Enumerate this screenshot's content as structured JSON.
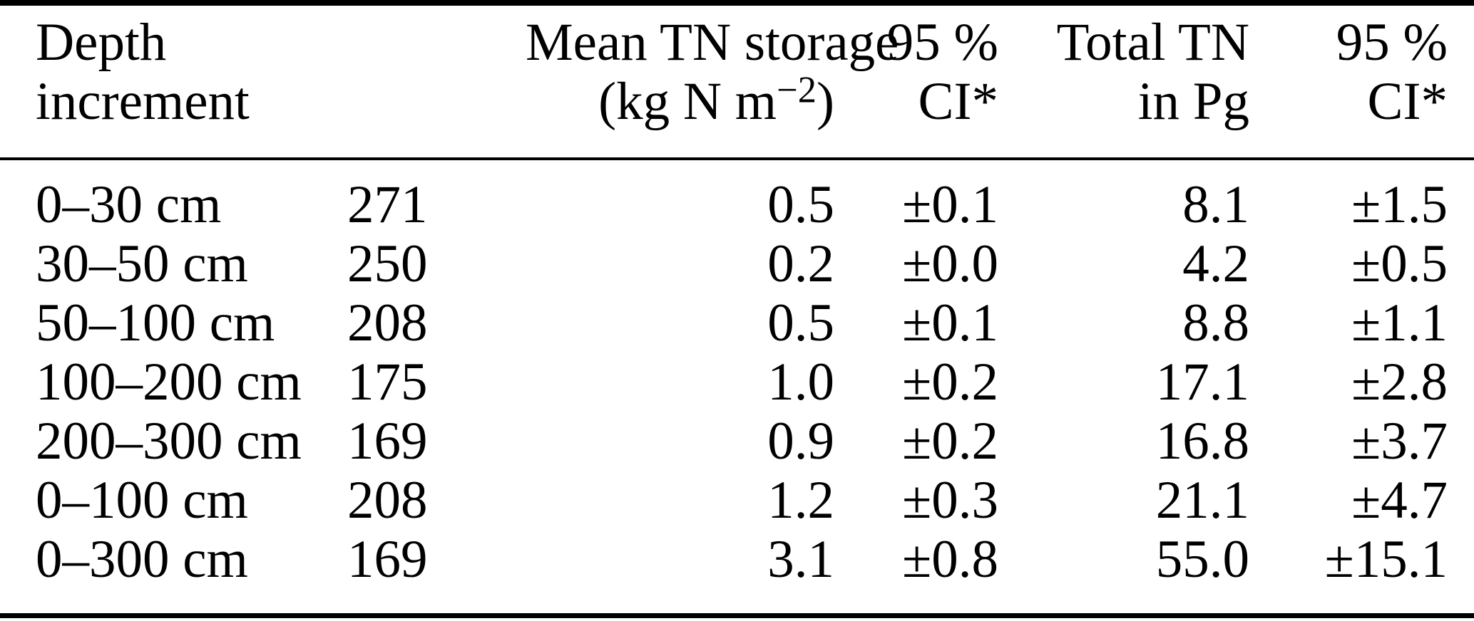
{
  "table": {
    "columns": [
      {
        "id": "depth",
        "line1": "Depth",
        "line2": "increment",
        "align": "left"
      },
      {
        "id": "n",
        "line1": "",
        "line2": "",
        "align": "left"
      },
      {
        "id": "mean",
        "line1": "Mean TN storage",
        "unit_prefix": "(kg N m",
        "unit_sup": "−2",
        "unit_suffix": ")",
        "align": "right"
      },
      {
        "id": "ci_mean",
        "line1": "95 %",
        "line2": "CI*",
        "align": "right"
      },
      {
        "id": "total",
        "line1": "Total TN",
        "line2": "in Pg",
        "align": "right"
      },
      {
        "id": "ci_total",
        "line1": "95 %",
        "line2": "CI*",
        "align": "right"
      }
    ],
    "rows": [
      {
        "depth": "0–30 cm",
        "n": "271",
        "mean": "0.5",
        "ci_mean": "±0.1",
        "total": "8.1",
        "ci_total": "±1.5"
      },
      {
        "depth": "30–50 cm",
        "n": "250",
        "mean": "0.2",
        "ci_mean": "±0.0",
        "total": "4.2",
        "ci_total": "±0.5"
      },
      {
        "depth": "50–100 cm",
        "n": "208",
        "mean": "0.5",
        "ci_mean": "±0.1",
        "total": "8.8",
        "ci_total": "±1.1"
      },
      {
        "depth": "100–200 cm",
        "n": "175",
        "mean": "1.0",
        "ci_mean": "±0.2",
        "total": "17.1",
        "ci_total": "±2.8"
      },
      {
        "depth": "200–300 cm",
        "n": "169",
        "mean": "0.9",
        "ci_mean": "±0.2",
        "total": "16.8",
        "ci_total": "±3.7"
      },
      {
        "depth": "0–100 cm",
        "n": "208",
        "mean": "1.2",
        "ci_mean": "±0.3",
        "total": "21.1",
        "ci_total": "±4.7"
      },
      {
        "depth": "0–300 cm",
        "n": "169",
        "mean": "3.1",
        "ci_mean": "±0.8",
        "total": "55.0",
        "ci_total": "±15.1"
      }
    ],
    "colors": {
      "text": "#000000",
      "background": "#ffffff",
      "rule": "#000000"
    }
  }
}
